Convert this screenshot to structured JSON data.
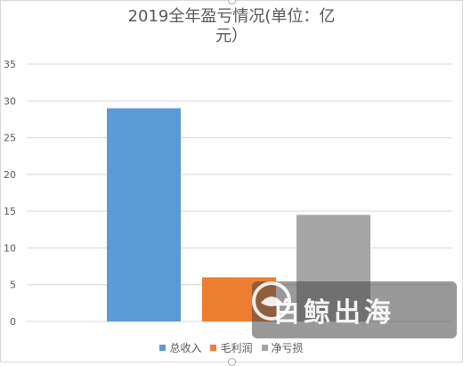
{
  "chart_data": {
    "type": "bar",
    "title": "2019全年盈亏情况(单位：亿元）",
    "title_lines": [
      "2019全年盈亏情况(单位：亿",
      "元）"
    ],
    "categories": [
      "总收入",
      "毛利润",
      "净亏损"
    ],
    "values": [
      29,
      6,
      14.5
    ],
    "colors": [
      "#5b9bd5",
      "#ed7d31",
      "#a5a5a5"
    ],
    "ylim": [
      0,
      35
    ],
    "yticks": [
      0,
      5,
      10,
      15,
      20,
      25,
      30,
      35
    ],
    "xlabel": "",
    "ylabel": "",
    "grid": true,
    "legend_position": "bottom"
  },
  "watermark": {
    "text": "白鲸出海"
  }
}
